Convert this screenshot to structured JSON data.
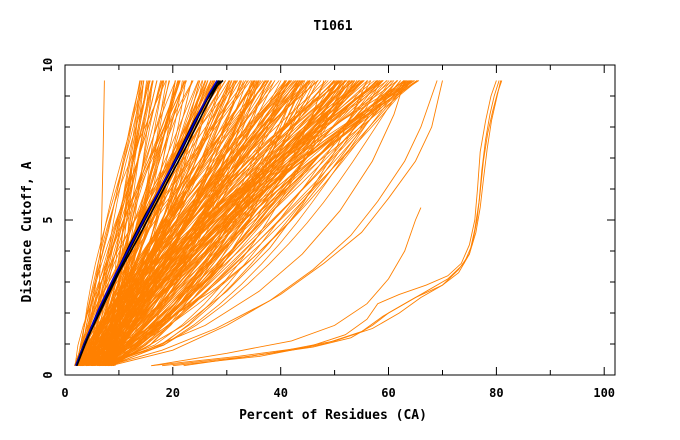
{
  "chart_data": {
    "type": "line",
    "title": "T1061",
    "xlabel": "Percent of Residues (CA)",
    "ylabel": "Distance Cutoff, A",
    "xlim": [
      0,
      102
    ],
    "ylim": [
      0,
      10
    ],
    "x_ticks": [
      0,
      20,
      40,
      60,
      80,
      100
    ],
    "y_ticks": [
      0,
      5,
      10
    ],
    "grid": false,
    "colors": {
      "bundle": "#ff8000",
      "highlight_black": "#000000",
      "highlight_blue": "#0000c8",
      "axes": "#000000"
    },
    "series": [
      {
        "color": "bundle",
        "x": [
          2,
          4.2,
          7,
          10,
          14,
          18,
          20,
          22,
          24,
          26,
          28,
          30,
          30.5
        ],
        "y": [
          0.3,
          1.0,
          1.8,
          2.6,
          3.6,
          4.8,
          5.4,
          6.1,
          6.8,
          7.6,
          8.5,
          9.3,
          9.5
        ]
      },
      {
        "color": "bundle",
        "x": [
          2.1,
          3.5,
          4.8,
          6.5,
          8,
          9.5,
          11,
          12.5,
          14
        ],
        "y": [
          0.3,
          1.5,
          2.5,
          3.6,
          4.6,
          5.8,
          7.1,
          8.4,
          9.5
        ]
      },
      {
        "color": "bundle",
        "x": [
          5.5,
          6,
          6.4,
          6.8,
          7.1,
          7.3
        ],
        "y": [
          0.3,
          1.5,
          3.0,
          5.0,
          7.5,
          9.5
        ]
      },
      {
        "color": "bundle",
        "x": [
          2.2,
          4,
          7,
          10,
          14,
          19,
          25,
          32,
          40,
          48,
          54,
          58
        ],
        "y": [
          0.3,
          0.8,
          1.5,
          2.2,
          3.0,
          4.0,
          5.0,
          6.0,
          7.0,
          8.0,
          8.9,
          9.5
        ]
      },
      {
        "color": "bundle",
        "x": [
          2.5,
          6,
          12,
          20,
          28,
          35,
          42,
          48,
          54,
          58,
          61
        ],
        "y": [
          0.3,
          0.7,
          1.2,
          1.9,
          2.8,
          3.8,
          5.0,
          6.3,
          7.7,
          8.9,
          9.5
        ]
      },
      {
        "color": "bundle",
        "x": [
          7,
          12,
          18,
          24,
          29,
          33,
          36,
          39,
          42,
          44,
          45.5
        ],
        "y": [
          0.3,
          0.9,
          1.6,
          2.5,
          3.5,
          4.6,
          5.7,
          6.9,
          8.1,
          9.0,
          9.5
        ]
      },
      {
        "color": "bundle",
        "x": [
          8,
          14,
          22,
          30,
          38,
          44,
          50,
          54,
          56
        ],
        "y": [
          0.3,
          0.8,
          1.6,
          2.7,
          4.1,
          5.5,
          7.2,
          8.7,
          9.5
        ]
      },
      {
        "color": "bundle",
        "x": [
          7.5,
          15,
          26,
          36,
          44,
          51,
          57,
          61,
          63
        ],
        "y": [
          0.3,
          0.8,
          1.6,
          2.7,
          3.9,
          5.3,
          6.9,
          8.4,
          9.5
        ]
      },
      {
        "color": "bundle",
        "x": [
          8,
          18,
          28,
          38,
          46,
          53,
          58,
          63,
          66,
          69
        ],
        "y": [
          0.3,
          0.8,
          1.5,
          2.4,
          3.4,
          4.5,
          5.6,
          6.9,
          8.0,
          9.5
        ]
      },
      {
        "color": "bundle",
        "x": [
          8.5,
          20,
          30,
          40,
          48,
          55,
          60,
          65,
          68,
          70
        ],
        "y": [
          0.3,
          0.8,
          1.6,
          2.6,
          3.6,
          4.6,
          5.7,
          6.9,
          8.0,
          9.5
        ]
      },
      {
        "color": "bundle",
        "x": [
          6,
          10,
          14,
          18,
          22,
          25,
          28,
          31,
          34,
          35.5
        ],
        "y": [
          0.3,
          0.9,
          1.7,
          2.7,
          3.9,
          5.0,
          6.3,
          7.7,
          9.0,
          9.5
        ]
      },
      {
        "color": "bundle",
        "x": [
          3,
          6,
          9,
          12,
          15,
          18,
          20,
          22,
          23.5
        ],
        "y": [
          0.3,
          1.0,
          2.0,
          3.2,
          4.5,
          5.9,
          7.1,
          8.4,
          9.5
        ]
      },
      {
        "color": "bundle",
        "x": [
          2.5,
          4.5,
          6.5,
          8.5,
          10,
          11.5,
          13,
          14.2
        ],
        "y": [
          0.3,
          1.2,
          2.4,
          3.8,
          5.0,
          6.3,
          7.8,
          9.5
        ]
      },
      {
        "color": "bundle",
        "x": [
          4,
          10,
          18,
          26,
          34,
          42,
          48,
          52
        ],
        "y": [
          0.3,
          0.9,
          1.8,
          3.0,
          4.5,
          6.3,
          8.1,
          9.5
        ]
      },
      {
        "color": "bundle",
        "x": [
          5,
          12,
          20,
          28,
          35,
          41,
          46,
          48
        ],
        "y": [
          0.3,
          1.0,
          2.0,
          3.3,
          4.9,
          6.6,
          8.4,
          9.5
        ]
      },
      {
        "color": "bundle",
        "x": [
          16,
          30,
          42,
          50,
          56,
          60,
          63,
          65,
          66
        ],
        "y": [
          0.3,
          0.7,
          1.1,
          1.6,
          2.3,
          3.1,
          4.0,
          5.0,
          5.4
        ]
      },
      {
        "color": "bundle",
        "x": [
          16,
          32,
          45,
          52,
          56,
          58,
          62,
          67,
          71,
          73.5,
          75,
          76,
          76.5,
          77,
          78,
          79,
          80
        ],
        "y": [
          0.3,
          0.6,
          0.9,
          1.3,
          1.8,
          2.3,
          2.6,
          2.9,
          3.2,
          3.6,
          4.2,
          5.0,
          6.0,
          7.2,
          8.2,
          9.0,
          9.5
        ]
      },
      {
        "color": "bundle",
        "x": [
          18,
          34,
          46,
          53,
          57,
          60,
          65,
          70,
          73,
          75,
          76,
          76.8,
          77.3,
          78,
          78.8,
          79.6,
          80.5
        ],
        "y": [
          0.3,
          0.6,
          0.9,
          1.2,
          1.6,
          2.0,
          2.5,
          2.9,
          3.3,
          3.9,
          4.7,
          5.6,
          6.6,
          7.6,
          8.4,
          9.0,
          9.5
        ]
      },
      {
        "color": "bundle",
        "x": [
          20,
          36,
          48,
          55,
          59,
          63,
          67,
          71,
          74,
          75.5,
          76.4,
          77,
          77.6,
          78.4,
          79.3,
          80.2,
          81
        ],
        "y": [
          0.3,
          0.6,
          1.0,
          1.4,
          1.9,
          2.3,
          2.7,
          3.1,
          3.6,
          4.2,
          5.0,
          5.9,
          6.9,
          7.8,
          8.5,
          9.1,
          9.5
        ]
      },
      {
        "color": "bundle",
        "x": [
          22,
          38,
          50,
          57,
          62,
          66,
          70,
          73,
          75,
          76.2,
          77,
          77.6,
          78.3,
          79.1,
          80,
          80.8
        ],
        "y": [
          0.3,
          0.7,
          1.1,
          1.5,
          2.0,
          2.5,
          2.9,
          3.4,
          3.9,
          4.6,
          5.4,
          6.3,
          7.3,
          8.2,
          8.9,
          9.5
        ]
      },
      {
        "color": "highlight_black",
        "x": [
          2,
          3.5,
          6,
          9,
          12,
          15,
          18,
          20,
          22,
          24,
          26,
          28,
          29.3
        ],
        "y": [
          0.3,
          1.0,
          2.0,
          3.1,
          4.2,
          5.2,
          6.1,
          6.8,
          7.5,
          8.2,
          8.8,
          9.3,
          9.5
        ]
      },
      {
        "color": "highlight_black",
        "x": [
          2.1,
          4,
          6.5,
          9.5,
          13,
          16,
          19,
          21.5,
          23.5,
          25.5,
          27,
          28.5
        ],
        "y": [
          0.3,
          1.1,
          2.1,
          3.2,
          4.4,
          5.4,
          6.4,
          7.2,
          7.9,
          8.6,
          9.1,
          9.5
        ]
      },
      {
        "color": "highlight_blue",
        "x": [
          2,
          3.8,
          6.2,
          9.2,
          12.5,
          15.5,
          18.5,
          21,
          23,
          25,
          26.8,
          28.2
        ],
        "y": [
          0.3,
          1.1,
          2.1,
          3.2,
          4.3,
          5.3,
          6.3,
          7.1,
          7.8,
          8.5,
          9.1,
          9.5
        ]
      },
      {
        "color": "highlight_black",
        "x": [
          2.2,
          4.2,
          7,
          10,
          13.5,
          16.5,
          19.5,
          22,
          24,
          26,
          27.5,
          28.8
        ],
        "y": [
          0.3,
          1.2,
          2.2,
          3.3,
          4.4,
          5.4,
          6.4,
          7.2,
          7.9,
          8.6,
          9.1,
          9.5
        ]
      }
    ]
  }
}
